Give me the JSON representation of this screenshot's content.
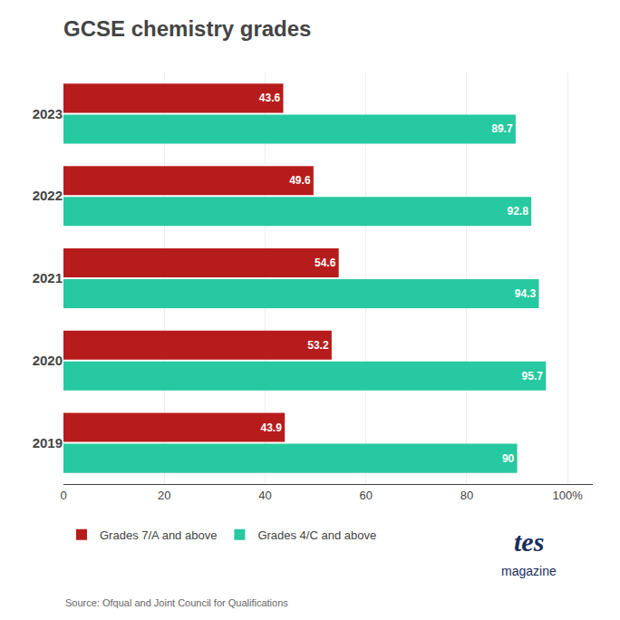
{
  "chart_data": {
    "type": "bar",
    "orientation": "horizontal",
    "title": "GCSE chemistry grades",
    "categories": [
      "2019",
      "2020",
      "2021",
      "2022",
      "2023"
    ],
    "series": [
      {
        "name": "Grades 7/A and above",
        "color": "#b71c1c",
        "values": [
          43.9,
          53.2,
          54.6,
          49.6,
          43.6
        ]
      },
      {
        "name": "Grades 4/C and above",
        "color": "#26c9a0",
        "values": [
          90.0,
          95.7,
          94.3,
          92.8,
          89.7
        ]
      }
    ],
    "xlim": [
      0,
      105
    ],
    "xticks": [
      0,
      20,
      40,
      60,
      80,
      {
        "value": 100,
        "label": "100%"
      }
    ],
    "grid": true,
    "legend": "lower left",
    "data_labels": true,
    "annotations": [
      "Source: Ofqual and Joint Council for Qualifications",
      "tes",
      "magazine"
    ]
  }
}
